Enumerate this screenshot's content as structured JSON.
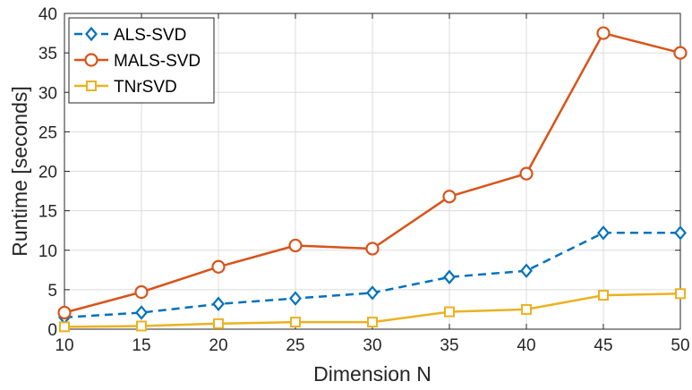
{
  "chart_data": {
    "type": "line",
    "xlabel": "Dimension N",
    "ylabel": "Runtime [seconds]",
    "xlim": [
      10,
      50
    ],
    "ylim": [
      0,
      40
    ],
    "x_ticks": [
      10,
      15,
      20,
      25,
      30,
      35,
      40,
      45,
      50
    ],
    "y_ticks": [
      0,
      5,
      10,
      15,
      20,
      25,
      30,
      35,
      40
    ],
    "grid": true,
    "legend_position": "top-left",
    "x": [
      10,
      15,
      20,
      25,
      30,
      35,
      40,
      45,
      50
    ],
    "series": [
      {
        "name": "ALS-SVD",
        "values": [
          1.5,
          2.1,
          3.2,
          3.9,
          4.6,
          6.6,
          7.4,
          12.2,
          12.2
        ],
        "color": "#0072BD",
        "marker": "diamond",
        "line_style": "dashed"
      },
      {
        "name": "MALS-SVD",
        "values": [
          2.1,
          4.7,
          7.9,
          10.6,
          10.2,
          16.8,
          19.7,
          37.5,
          35.0
        ],
        "color": "#D95319",
        "marker": "circle",
        "line_style": "solid"
      },
      {
        "name": "TNrSVD",
        "values": [
          0.3,
          0.4,
          0.7,
          0.9,
          0.9,
          2.2,
          2.5,
          4.3,
          4.5
        ],
        "color": "#EDB120",
        "marker": "square",
        "line_style": "solid"
      }
    ]
  }
}
